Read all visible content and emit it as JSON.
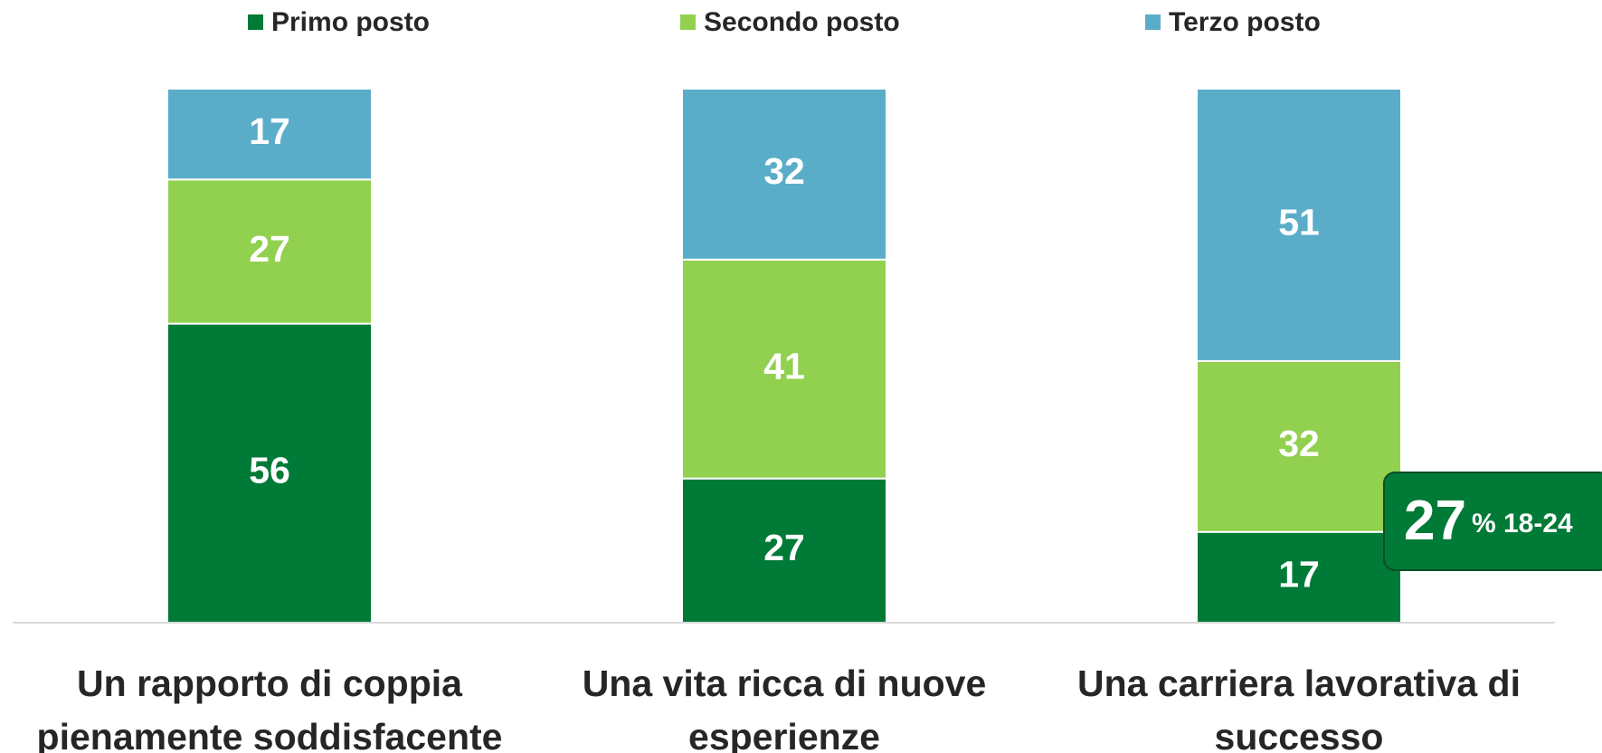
{
  "chart_data": {
    "type": "stacked_bar",
    "categories": [
      "Un rapporto di coppia pienamente soddisfacente",
      "Una vita ricca di nuove esperienze",
      "Una carriera lavorativa di successo"
    ],
    "series": [
      {
        "name": "Primo posto",
        "color": "#007a37",
        "values": [
          56,
          27,
          17
        ]
      },
      {
        "name": "Secondo posto",
        "color": "#92d050",
        "values": [
          27,
          41,
          32
        ]
      },
      {
        "name": "Terzo posto",
        "color": "#5aadc9",
        "values": [
          17,
          32,
          51
        ]
      }
    ],
    "ylim": [
      0,
      100
    ],
    "annotation": {
      "value": 27,
      "text": "% 18-24"
    }
  }
}
